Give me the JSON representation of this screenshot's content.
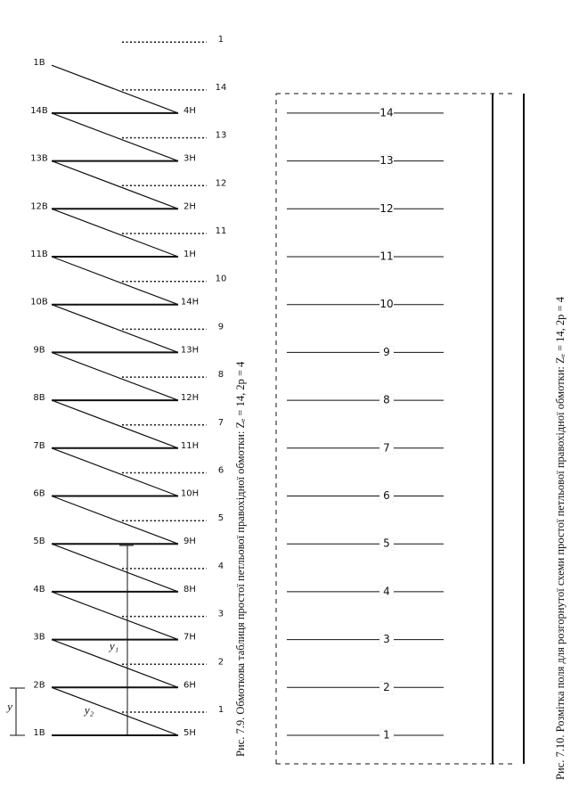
{
  "figure_7_9": {
    "caption": "Рис. 7.9. Обмоткова таблиця простої петльової правохідної обмотки: Zₑ = 14, 2p = 4",
    "top_labels": [
      "1В",
      "2В",
      "3В",
      "4В",
      "5В",
      "6В",
      "7В",
      "8В",
      "9В",
      "10В",
      "11В",
      "12В",
      "13В",
      "14В",
      "1В"
    ],
    "bottom_labels": [
      "5Н",
      "6Н",
      "7Н",
      "8Н",
      "9Н",
      "10Н",
      "11Н",
      "12Н",
      "13Н",
      "14Н",
      "1Н",
      "2Н",
      "3Н",
      "4Н"
    ],
    "dotted_labels": [
      "1",
      "2",
      "3",
      "4",
      "5",
      "6",
      "7",
      "8",
      "9",
      "10",
      "11",
      "12",
      "13",
      "14",
      "1"
    ],
    "dimensions": {
      "y": "y",
      "y1": "y₁",
      "y2": "y₂"
    }
  },
  "figure_7_10": {
    "caption": "Рис. 7.10. Розмітка поля для розгорнутої схеми простої петльової правохідної обмотки: Zₑ = 14, 2p = 4",
    "slot_numbers": [
      "1",
      "2",
      "3",
      "4",
      "5",
      "6",
      "7",
      "8",
      "9",
      "10",
      "11",
      "12",
      "13",
      "14"
    ]
  }
}
